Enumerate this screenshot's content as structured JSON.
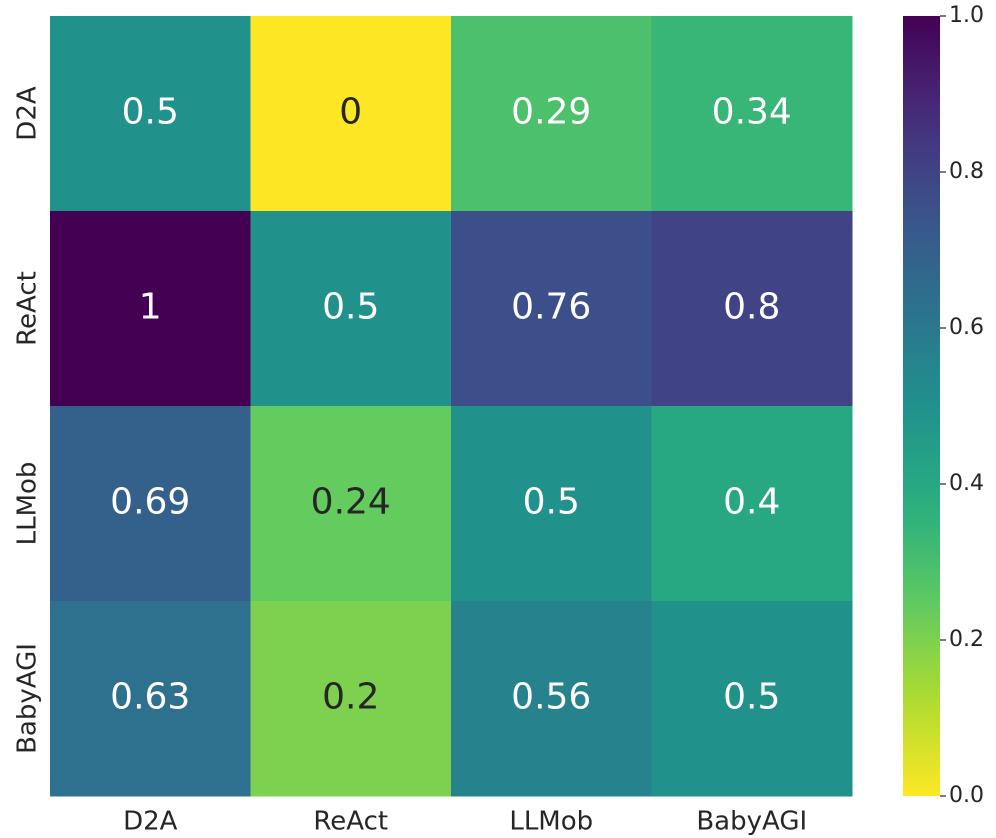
{
  "chart_data": {
    "type": "heatmap",
    "x_categories": [
      "D2A",
      "ReAct",
      "LLMob",
      "BabyAGI"
    ],
    "y_categories": [
      "D2A",
      "ReAct",
      "LLMob",
      "BabyAGI"
    ],
    "values": [
      [
        0.5,
        0,
        0.29,
        0.34
      ],
      [
        1,
        0.5,
        0.76,
        0.8
      ],
      [
        0.69,
        0.24,
        0.5,
        0.4
      ],
      [
        0.63,
        0.2,
        0.56,
        0.5
      ]
    ],
    "colormap": "viridis_r",
    "clim": [
      0,
      1
    ],
    "cticks": [
      {
        "value": 0,
        "label": "0.0"
      },
      0.2,
      0.4,
      0.6,
      0.8,
      {
        "value": 1,
        "label": "1.0"
      }
    ]
  }
}
